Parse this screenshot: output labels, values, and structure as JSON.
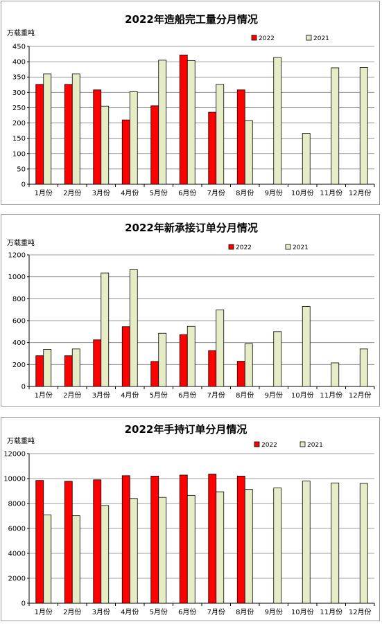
{
  "colors": {
    "series_2022": "#ff0000",
    "series_2021": "#e6ecc6",
    "grid": "#7f7f7f"
  },
  "chart_data": [
    {
      "type": "bar",
      "title": "2022年造船完工量分月情况",
      "unit_label": "万载重吨",
      "categories": [
        "1月份",
        "2月份",
        "3月份",
        "4月份",
        "5月份",
        "6月份",
        "7月份",
        "8月份",
        "9月份",
        "10月份",
        "11月份",
        "12月份"
      ],
      "series": [
        {
          "name": "2022",
          "color": "#ff0000",
          "values": [
            326,
            326,
            308,
            210,
            256,
            422,
            235,
            308,
            null,
            null,
            null,
            null
          ]
        },
        {
          "name": "2021",
          "color": "#e6ecc6",
          "values": [
            360,
            360,
            255,
            302,
            405,
            404,
            326,
            208,
            414,
            166,
            380,
            381
          ]
        }
      ],
      "ylim": [
        0,
        450
      ],
      "yticks": [
        0,
        50,
        100,
        150,
        200,
        250,
        300,
        350,
        400,
        450
      ],
      "grid": true,
      "legend_position": "top-right"
    },
    {
      "type": "bar",
      "title": "2022年新承接订单分月情况",
      "unit_label": "万载重吨",
      "categories": [
        "1月份",
        "2月份",
        "3月份",
        "4月份",
        "5月份",
        "6月份",
        "7月份",
        "8月份",
        "9月份",
        "10月份",
        "11月份",
        "12月份"
      ],
      "series": [
        {
          "name": "2022",
          "color": "#ff0000",
          "values": [
            280,
            280,
            425,
            545,
            228,
            473,
            327,
            230,
            null,
            null,
            null,
            null
          ]
        },
        {
          "name": "2021",
          "color": "#e6ecc6",
          "values": [
            338,
            342,
            1035,
            1065,
            485,
            548,
            698,
            390,
            500,
            730,
            215,
            342
          ]
        }
      ],
      "ylim": [
        0,
        1200
      ],
      "yticks": [
        0,
        200,
        400,
        600,
        800,
        1000,
        1200
      ],
      "grid": true,
      "legend_position": "top-right"
    },
    {
      "type": "bar",
      "title": "2022年手持订单分月情况",
      "unit_label": "万载重吨",
      "categories": [
        "1月份",
        "2月份",
        "3月份",
        "4月份",
        "5月份",
        "6月份",
        "7月份",
        "8月份",
        "9月份",
        "10月份",
        "11月份",
        "12月份"
      ],
      "series": [
        {
          "name": "2022",
          "color": "#ff0000",
          "values": [
            9850,
            9780,
            9900,
            10230,
            10200,
            10280,
            10360,
            10200,
            null,
            null,
            null,
            null
          ]
        },
        {
          "name": "2021",
          "color": "#e6ecc6",
          "values": [
            7080,
            7020,
            7840,
            8400,
            8490,
            8650,
            8940,
            9130,
            9250,
            9800,
            9650,
            9610
          ]
        }
      ],
      "ylim": [
        0,
        12000
      ],
      "yticks": [
        0,
        2000,
        4000,
        6000,
        8000,
        10000,
        12000
      ],
      "grid": true,
      "legend_position": "top-right"
    }
  ]
}
